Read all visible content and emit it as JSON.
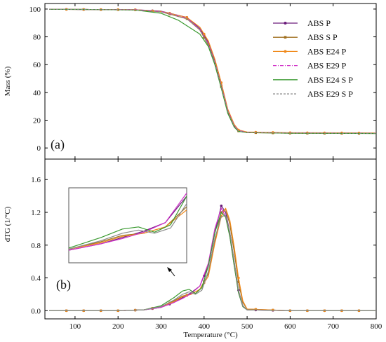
{
  "chart_data": [
    {
      "type": "line",
      "panel_label": "(a)",
      "ylabel": "Mass (%)",
      "xlabel": "",
      "xlim": [
        30,
        800
      ],
      "ylim": [
        -8,
        104
      ],
      "x_ticks": [
        100,
        200,
        300,
        400,
        500,
        600,
        700,
        800
      ],
      "y_ticks": [
        0,
        20,
        40,
        60,
        80,
        100
      ],
      "y_tick_labels": [
        "0",
        "20",
        "40",
        "60",
        "80",
        "100"
      ],
      "legend": {
        "placement": "top-right"
      },
      "series": [
        {
          "name": "ABS P",
          "color": "#6a1b7a",
          "marker": "dot",
          "dash": "solid",
          "x": [
            40,
            120,
            240,
            300,
            360,
            390,
            410,
            425,
            440,
            455,
            470,
            480,
            500,
            600,
            800
          ],
          "y": [
            99.8,
            99.7,
            99.5,
            98.5,
            94,
            86,
            76,
            63,
            45,
            27,
            16,
            12.5,
            11.2,
            10.8,
            10.6
          ]
        },
        {
          "name": "ABS S P",
          "color": "#a07020",
          "marker": "square",
          "dash": "solid",
          "x": [
            40,
            120,
            240,
            300,
            360,
            390,
            410,
            425,
            440,
            455,
            470,
            480,
            500,
            600,
            800
          ],
          "y": [
            99.8,
            99.7,
            99.4,
            98,
            93,
            85,
            74,
            61,
            44,
            26,
            15.5,
            12.2,
            11.0,
            10.6,
            10.4
          ]
        },
        {
          "name": "ABS E24 P",
          "color": "#f08a1c",
          "marker": "dot",
          "dash": "solid",
          "x": [
            40,
            120,
            240,
            300,
            360,
            390,
            410,
            425,
            440,
            455,
            470,
            480,
            500,
            600,
            800
          ],
          "y": [
            99.8,
            99.7,
            99.5,
            98.3,
            94,
            87,
            77,
            64,
            47,
            28,
            17,
            13,
            11.5,
            11.0,
            10.8
          ]
        },
        {
          "name": "ABS E29 P",
          "color": "#d030c8",
          "marker": "none",
          "dash": "dashdot",
          "x": [
            40,
            120,
            240,
            300,
            360,
            390,
            410,
            425,
            440,
            455,
            470,
            480,
            500,
            600,
            800
          ],
          "y": [
            99.8,
            99.7,
            99.5,
            98.2,
            93.5,
            85.5,
            75,
            62,
            45,
            27,
            16,
            12.6,
            11.2,
            10.8,
            10.6
          ]
        },
        {
          "name": "ABS E24 S P",
          "color": "#3a9a30",
          "marker": "none",
          "dash": "solid",
          "x": [
            40,
            120,
            240,
            300,
            340,
            360,
            390,
            410,
            425,
            440,
            455,
            470,
            480,
            500,
            600,
            800
          ],
          "y": [
            99.8,
            99.7,
            99.3,
            97,
            92,
            88,
            82,
            73,
            60,
            43,
            25,
            15,
            12,
            11.0,
            10.6,
            10.4
          ]
        },
        {
          "name": "ABS E29 S P",
          "color": "#8a8a8a",
          "marker": "none",
          "dash": "dashed",
          "x": [
            40,
            120,
            240,
            300,
            360,
            390,
            410,
            425,
            440,
            455,
            470,
            480,
            500,
            600,
            800
          ],
          "y": [
            99.8,
            99.7,
            99.4,
            98,
            93,
            85,
            74.5,
            61.5,
            44.5,
            26.5,
            15.8,
            12.3,
            11.1,
            10.7,
            10.5
          ]
        }
      ]
    },
    {
      "type": "line",
      "panel_label": "(b)",
      "ylabel": "dTG (1/°C)",
      "xlabel": "Temperature (°C)",
      "xlim": [
        30,
        800
      ],
      "ylim": [
        -0.1,
        1.85
      ],
      "x_ticks": [
        100,
        200,
        300,
        400,
        500,
        600,
        700,
        800
      ],
      "x_tick_labels": [
        "100",
        "200",
        "300",
        "400",
        "500",
        "600",
        "700",
        "800"
      ],
      "y_ticks": [
        0.0,
        0.4,
        0.8,
        1.2,
        1.6
      ],
      "y_tick_labels": [
        "0.0",
        "0.4",
        "0.8",
        "1.2",
        "1.6"
      ],
      "series": [
        {
          "name": "ABS P",
          "color": "#6a1b7a",
          "marker": "dot",
          "x": [
            40,
            200,
            260,
            300,
            330,
            350,
            370,
            390,
            410,
            425,
            440,
            450,
            460,
            470,
            480,
            490,
            500,
            600,
            800
          ],
          "y": [
            0,
            0,
            0.01,
            0.04,
            0.1,
            0.16,
            0.22,
            0.3,
            0.55,
            0.95,
            1.28,
            1.2,
            0.95,
            0.6,
            0.25,
            0.06,
            0.01,
            0,
            0
          ]
        },
        {
          "name": "ABS S P",
          "color": "#a07020",
          "marker": "square",
          "x": [
            40,
            200,
            260,
            300,
            330,
            350,
            370,
            390,
            410,
            425,
            440,
            450,
            460,
            470,
            480,
            490,
            500,
            600,
            800
          ],
          "y": [
            0,
            0,
            0.01,
            0.05,
            0.12,
            0.18,
            0.2,
            0.26,
            0.45,
            0.85,
            1.2,
            1.24,
            1.05,
            0.72,
            0.35,
            0.1,
            0.02,
            0,
            0
          ]
        },
        {
          "name": "ABS E24 P",
          "color": "#f08a1c",
          "marker": "dot",
          "x": [
            40,
            200,
            260,
            300,
            330,
            350,
            370,
            390,
            410,
            425,
            440,
            450,
            460,
            470,
            480,
            490,
            500,
            600,
            800
          ],
          "y": [
            0,
            0,
            0.01,
            0.05,
            0.11,
            0.17,
            0.2,
            0.26,
            0.42,
            0.82,
            1.15,
            1.25,
            1.1,
            0.78,
            0.4,
            0.12,
            0.02,
            0,
            0
          ]
        },
        {
          "name": "ABS E29 P",
          "color": "#d030c8",
          "marker": "none",
          "x": [
            40,
            200,
            260,
            300,
            330,
            350,
            370,
            390,
            410,
            425,
            440,
            450,
            460,
            470,
            480,
            490,
            500,
            600,
            800
          ],
          "y": [
            0,
            0,
            0.01,
            0.04,
            0.1,
            0.15,
            0.21,
            0.3,
            0.58,
            1.0,
            1.25,
            1.15,
            0.9,
            0.55,
            0.22,
            0.05,
            0.01,
            0,
            0
          ]
        },
        {
          "name": "ABS E24 S P",
          "color": "#3a9a30",
          "marker": "none",
          "x": [
            40,
            200,
            260,
            300,
            330,
            350,
            365,
            380,
            395,
            410,
            425,
            440,
            450,
            460,
            470,
            480,
            490,
            500,
            600,
            800
          ],
          "y": [
            0,
            0,
            0.01,
            0.06,
            0.16,
            0.24,
            0.26,
            0.21,
            0.28,
            0.55,
            0.95,
            1.2,
            1.14,
            0.9,
            0.55,
            0.22,
            0.05,
            0.01,
            0,
            0
          ]
        },
        {
          "name": "ABS E29 S P",
          "color": "#8a8a8a",
          "marker": "none",
          "x": [
            40,
            200,
            260,
            300,
            330,
            350,
            365,
            380,
            395,
            410,
            425,
            440,
            450,
            460,
            470,
            480,
            490,
            500,
            600,
            800
          ],
          "y": [
            0,
            0,
            0.01,
            0.05,
            0.13,
            0.2,
            0.23,
            0.2,
            0.25,
            0.48,
            0.88,
            1.15,
            1.16,
            0.95,
            0.6,
            0.25,
            0.06,
            0.01,
            0,
            0
          ]
        }
      ]
    }
  ]
}
